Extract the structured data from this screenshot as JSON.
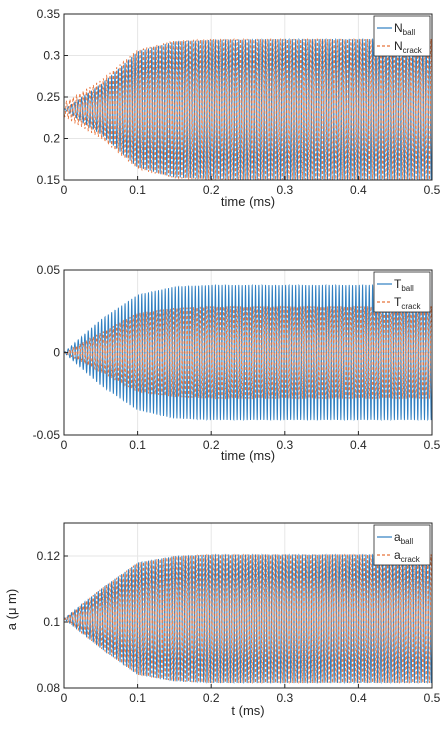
{
  "colors": {
    "series_a": "#2f7fc1",
    "series_b": "#e8743b",
    "axis": "#262626",
    "grid": "#e6e6e6"
  },
  "chart_data": [
    {
      "type": "line",
      "xlabel": "time (ms)",
      "ylabel": "",
      "xlim": [
        0,
        0.5
      ],
      "ylim": [
        0.15,
        0.35
      ],
      "xticks": [
        "0",
        "0.1",
        "0.2",
        "0.3",
        "0.4",
        "0.5"
      ],
      "yticks": [
        "0.15",
        "0.2",
        "0.25",
        "0.3",
        "0.35"
      ],
      "grid": true,
      "legend_position": "top-right",
      "legend": [
        {
          "base": "N",
          "sub": "ball",
          "style": "solid"
        },
        {
          "base": "N",
          "sub": "crack",
          "style": "dashed"
        }
      ],
      "series": [
        {
          "key": "ball",
          "line_style": "solid",
          "center": 0.235,
          "oscillation_envelope": {
            "t": [
              0,
              0.05,
              0.1,
              0.15,
              0.2,
              0.3,
              0.5
            ],
            "amplitude": [
              0.0,
              0.03,
              0.07,
              0.082,
              0.084,
              0.085,
              0.085
            ]
          },
          "min_plateau": 0.15,
          "max_plateau": 0.32
        },
        {
          "key": "crack",
          "line_style": "dashed",
          "center": 0.235,
          "oscillation_envelope": {
            "t": [
              0,
              0.05,
              0.1,
              0.15,
              0.2,
              0.3,
              0.5
            ],
            "amplitude": [
              0.008,
              0.035,
              0.072,
              0.083,
              0.085,
              0.085,
              0.085
            ]
          },
          "min_plateau": 0.15,
          "max_plateau": 0.32
        }
      ]
    },
    {
      "type": "line",
      "xlabel": "time (ms)",
      "ylabel": "",
      "xlim": [
        0,
        0.5
      ],
      "ylim": [
        -0.05,
        0.05
      ],
      "xticks": [
        "0",
        "0.1",
        "0.2",
        "0.3",
        "0.4",
        "0.5"
      ],
      "yticks": [
        "-0.05",
        "0",
        "0.05"
      ],
      "grid": true,
      "legend_position": "top-right",
      "legend": [
        {
          "base": "T",
          "sub": "ball",
          "style": "solid"
        },
        {
          "base": "T",
          "sub": "crack",
          "style": "dashed"
        }
      ],
      "series": [
        {
          "key": "ball",
          "line_style": "solid",
          "center": 0.0,
          "oscillation_envelope": {
            "t": [
              0,
              0.05,
              0.1,
              0.15,
              0.2,
              0.3,
              0.5
            ],
            "amplitude": [
              0.0,
              0.02,
              0.035,
              0.04,
              0.041,
              0.041,
              0.041
            ]
          },
          "min_plateau": -0.041,
          "max_plateau": 0.041
        },
        {
          "key": "crack",
          "line_style": "dashed",
          "center": 0.0,
          "oscillation_envelope": {
            "t": [
              0,
              0.05,
              0.1,
              0.15,
              0.2,
              0.3,
              0.5
            ],
            "amplitude": [
              0.0,
              0.012,
              0.024,
              0.027,
              0.028,
              0.028,
              0.028
            ]
          },
          "min_plateau": -0.028,
          "max_plateau": 0.028
        }
      ]
    },
    {
      "type": "line",
      "xlabel": "t (ms)",
      "ylabel": "a (μ m)",
      "xlim": [
        0,
        0.5
      ],
      "ylim": [
        0.08,
        0.13
      ],
      "xticks": [
        "0",
        "0.1",
        "0.2",
        "0.3",
        "0.4",
        "0.5"
      ],
      "yticks": [
        "0.08",
        "0.1",
        "0.12"
      ],
      "grid": true,
      "legend_position": "top-right",
      "legend": [
        {
          "base": "a",
          "sub": "ball",
          "style": "solid"
        },
        {
          "base": "a",
          "sub": "crack",
          "style": "dashed"
        }
      ],
      "series": [
        {
          "key": "ball",
          "line_style": "solid",
          "center": 0.101,
          "oscillation_envelope": {
            "t": [
              0,
              0.05,
              0.1,
              0.15,
              0.2,
              0.3,
              0.5
            ],
            "amplitude": [
              0.0,
              0.009,
              0.017,
              0.019,
              0.0195,
              0.0195,
              0.0195
            ]
          },
          "min_plateau": 0.0815,
          "max_plateau": 0.1205
        },
        {
          "key": "crack",
          "line_style": "dashed",
          "center": 0.101,
          "oscillation_envelope": {
            "t": [
              0,
              0.05,
              0.1,
              0.15,
              0.2,
              0.3,
              0.5
            ],
            "amplitude": [
              0.0,
              0.009,
              0.017,
              0.019,
              0.0195,
              0.0195,
              0.0195
            ]
          },
          "min_plateau": 0.0815,
          "max_plateau": 0.1205
        }
      ]
    }
  ]
}
